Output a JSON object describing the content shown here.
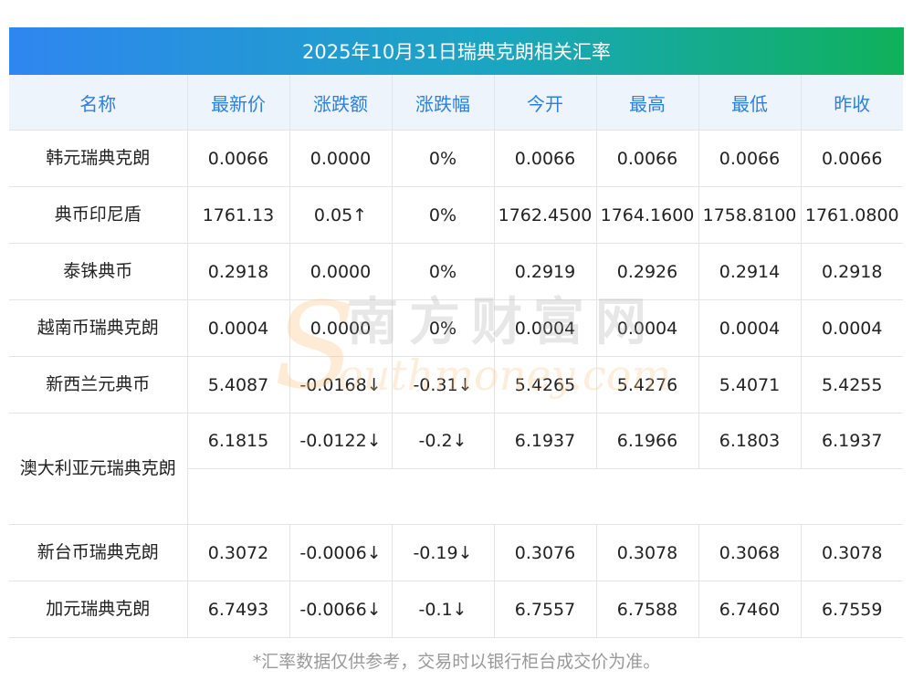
{
  "title": "2025年10月31日瑞典克朗相关汇率",
  "headers": [
    "名称",
    "最新价",
    "涨跌额",
    "涨跌幅",
    "今开",
    "最高",
    "最低",
    "昨收"
  ],
  "rows": [
    {
      "name": "韩元瑞典克朗",
      "latest": "0.0066",
      "change": "0.0000",
      "pct": "0%",
      "open": "0.0066",
      "high": "0.0066",
      "low": "0.0066",
      "prev": "0.0066",
      "trend": "flat"
    },
    {
      "name": "典币印尼盾",
      "latest": "1761.13",
      "change": "0.05↑",
      "pct": "0%",
      "open": "1762.4500",
      "high": "1764.1600",
      "low": "1758.8100",
      "prev": "1761.0800",
      "trend": "up"
    },
    {
      "name": "泰铢典币",
      "latest": "0.2918",
      "change": "0.0000",
      "pct": "0%",
      "open": "0.2919",
      "high": "0.2926",
      "low": "0.2914",
      "prev": "0.2918",
      "trend": "flat"
    },
    {
      "name": "越南币瑞典克朗",
      "latest": "0.0004",
      "change": "0.0000",
      "pct": "0%",
      "open": "0.0004",
      "high": "0.0004",
      "low": "0.0004",
      "prev": "0.0004",
      "trend": "flat"
    },
    {
      "name": "新西兰元典币",
      "latest": "5.4087",
      "change": "-0.0168↓",
      "pct": "-0.31↓",
      "open": "5.4265",
      "high": "5.4276",
      "low": "5.4071",
      "prev": "5.4255",
      "trend": "down"
    },
    {
      "name": "澳大利亚元瑞典克朗",
      "latest": "6.1815",
      "change": "-0.0122↓",
      "pct": "-0.2↓",
      "open": "6.1937",
      "high": "6.1966",
      "low": "6.1803",
      "prev": "6.1937",
      "trend": "down"
    },
    {
      "name": "新台币瑞典克朗",
      "latest": "0.3072",
      "change": "-0.0006↓",
      "pct": "-0.19↓",
      "open": "0.3076",
      "high": "0.3078",
      "low": "0.3068",
      "prev": "0.3078",
      "trend": "down"
    },
    {
      "name": "加元瑞典克朗",
      "latest": "6.7493",
      "change": "-0.0066↓",
      "pct": "-0.1↓",
      "open": "6.7557",
      "high": "6.7588",
      "low": "6.7460",
      "prev": "6.7559",
      "trend": "down"
    }
  ],
  "footer": "*汇率数据仅供参考，交易时以银行柜台成交价为准。",
  "watermark": {
    "cn": "南方财富网",
    "en": "outhmoney.com",
    "s": "S"
  },
  "colors": {
    "up": "#e4141b",
    "down": "#1d8a1d",
    "header_text": "#2f7fd8",
    "header_bg": "#eef4fc"
  }
}
